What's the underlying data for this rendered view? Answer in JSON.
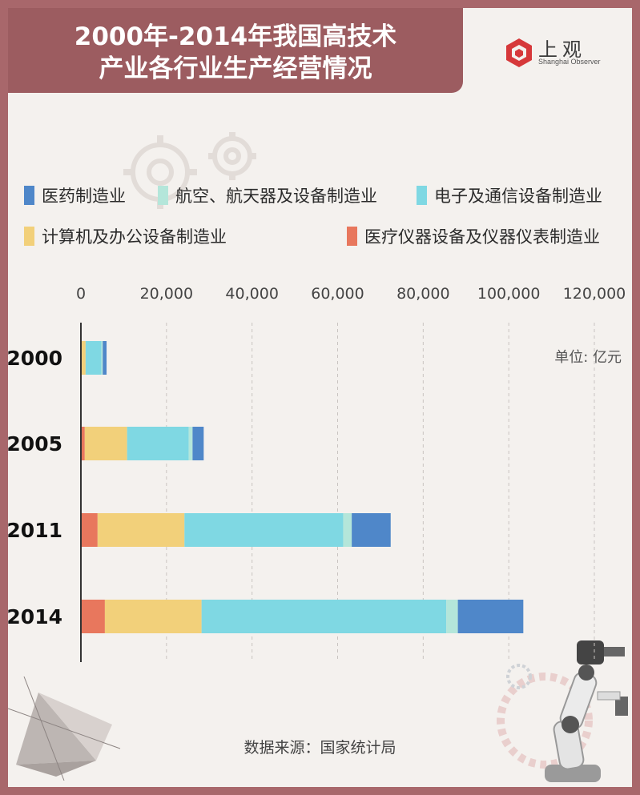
{
  "header": {
    "title_lines": [
      "2000年-2014年我国高技术",
      "产业各行业生产经营情况"
    ]
  },
  "logo": {
    "name_cn": "上观",
    "name_en": "Shanghai Observer",
    "color": "#d6383a"
  },
  "unit_label": "单位: 亿元",
  "source": "数据来源：国家统计局",
  "chart_data": {
    "type": "bar",
    "orientation": "horizontal",
    "stacked": true,
    "categories": [
      "2000",
      "2005",
      "2011",
      "2014"
    ],
    "x_ticks": [
      "0",
      "20,000",
      "40,000",
      "60,000",
      "80,000",
      "100,000",
      "120,000"
    ],
    "xlim": [
      0,
      120000
    ],
    "x_axis_position": "top",
    "grid": "vertical dashed",
    "legend_position": "top",
    "series": [
      {
        "name": "医疗仪器设备及仪器仪表制造业",
        "color": "#e8775d",
        "values": [
          200,
          900,
          3900,
          5600
        ]
      },
      {
        "name": "计算机及办公设备制造业",
        "color": "#f2d07a",
        "values": [
          900,
          9900,
          20300,
          22600
        ]
      },
      {
        "name": "电子及通信设备制造业",
        "color": "#7fd8e3",
        "values": [
          3700,
          14400,
          37100,
          57200
        ]
      },
      {
        "name": "航空、航天器及设备制造业",
        "color": "#b4e6da",
        "values": [
          300,
          900,
          2000,
          2700
        ]
      },
      {
        "name": "医药制造业",
        "color": "#4f87c9",
        "values": [
          900,
          2600,
          9100,
          15300
        ]
      }
    ],
    "legend_order": [
      "医药制造业",
      "航空、航天器及设备制造业",
      "电子及通信设备制造业",
      "计算机及办公设备制造业",
      "医疗仪器设备及仪器仪表制造业"
    ]
  }
}
